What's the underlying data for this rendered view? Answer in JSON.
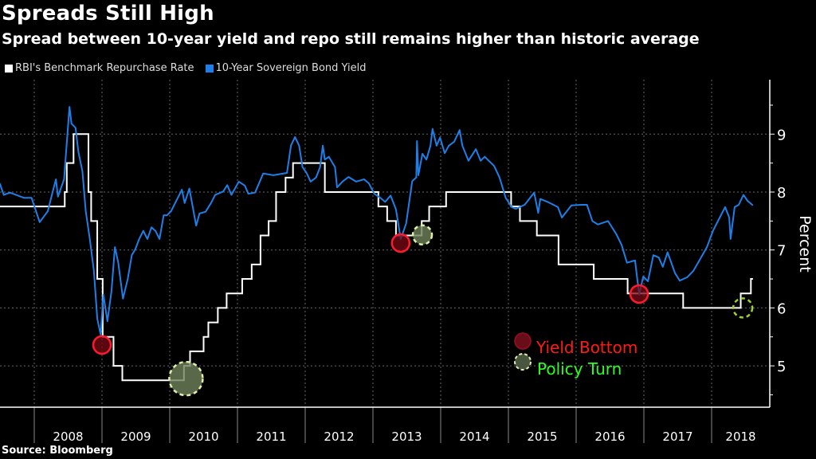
{
  "title": "Spreads Still High",
  "subtitle": "Spread between 10-year yield and repo still remains higher than historic average",
  "source": "Source: Bloomberg",
  "colors": {
    "repo": "#ffffff",
    "yield": "#1e7fe8",
    "yield_bottom": "#ff1a2e",
    "policy_turn": "#33ff22",
    "grid": "#555555"
  },
  "chart_data": {
    "type": "line",
    "title": "Spreads Still High",
    "xlabel": "",
    "ylabel": "Percent",
    "xlim": [
      2007.49,
      2018.95
    ],
    "ylim": [
      4.3,
      9.9
    ],
    "x_tick_labels": [
      "2008",
      "2009",
      "2010",
      "2011",
      "2012",
      "2013",
      "2014",
      "2015",
      "2016",
      "2017",
      "2018"
    ],
    "y_ticks": [
      5,
      6,
      7,
      8,
      9
    ],
    "y_tick_labels": [
      "5",
      "6",
      "7",
      "8",
      "9"
    ],
    "grid": true,
    "legend_placement": "top-left",
    "series": [
      {
        "name": "RBI's Benchmark Repurchase Rate",
        "color": "#ffffff",
        "step": true,
        "points": [
          [
            2007.49,
            7.75
          ],
          [
            2008.45,
            8.0
          ],
          [
            2008.48,
            8.5
          ],
          [
            2008.58,
            9.0
          ],
          [
            2008.8,
            8.0
          ],
          [
            2008.84,
            7.5
          ],
          [
            2008.93,
            6.5
          ],
          [
            2009.01,
            5.5
          ],
          [
            2009.17,
            5.0
          ],
          [
            2009.3,
            4.75
          ],
          [
            2010.21,
            5.0
          ],
          [
            2010.3,
            5.25
          ],
          [
            2010.5,
            5.5
          ],
          [
            2010.57,
            5.75
          ],
          [
            2010.71,
            6.0
          ],
          [
            2010.84,
            6.25
          ],
          [
            2011.07,
            6.5
          ],
          [
            2011.21,
            6.75
          ],
          [
            2011.34,
            7.25
          ],
          [
            2011.46,
            7.5
          ],
          [
            2011.57,
            8.0
          ],
          [
            2011.71,
            8.25
          ],
          [
            2011.82,
            8.5
          ],
          [
            2012.29,
            8.0
          ],
          [
            2013.08,
            7.75
          ],
          [
            2013.21,
            7.5
          ],
          [
            2013.34,
            7.25
          ],
          [
            2013.72,
            7.5
          ],
          [
            2013.83,
            7.75
          ],
          [
            2014.08,
            8.0
          ],
          [
            2015.04,
            7.75
          ],
          [
            2015.17,
            7.5
          ],
          [
            2015.42,
            7.25
          ],
          [
            2015.74,
            6.75
          ],
          [
            2016.26,
            6.5
          ],
          [
            2016.76,
            6.25
          ],
          [
            2017.58,
            6.0
          ],
          [
            2018.43,
            6.25
          ],
          [
            2018.58,
            6.5
          ],
          [
            2018.61,
            6.5
          ]
        ]
      },
      {
        "name": "10-Year Sovereign Bond Yield",
        "color": "#1e7fe8",
        "points": [
          [
            2007.49,
            8.15
          ],
          [
            2007.55,
            7.95
          ],
          [
            2007.64,
            7.99
          ],
          [
            2007.85,
            7.9
          ],
          [
            2007.96,
            7.9
          ],
          [
            2008.08,
            7.48
          ],
          [
            2008.2,
            7.67
          ],
          [
            2008.26,
            7.95
          ],
          [
            2008.32,
            8.22
          ],
          [
            2008.35,
            7.92
          ],
          [
            2008.44,
            8.22
          ],
          [
            2008.47,
            8.7
          ],
          [
            2008.52,
            9.47
          ],
          [
            2008.55,
            9.18
          ],
          [
            2008.61,
            9.11
          ],
          [
            2008.65,
            8.7
          ],
          [
            2008.71,
            8.36
          ],
          [
            2008.76,
            7.67
          ],
          [
            2008.82,
            7.19
          ],
          [
            2008.88,
            6.64
          ],
          [
            2008.93,
            5.81
          ],
          [
            2008.98,
            5.54
          ],
          [
            2009.02,
            6.23
          ],
          [
            2009.08,
            5.77
          ],
          [
            2009.14,
            6.29
          ],
          [
            2009.19,
            7.05
          ],
          [
            2009.24,
            6.78
          ],
          [
            2009.31,
            6.16
          ],
          [
            2009.38,
            6.5
          ],
          [
            2009.44,
            6.91
          ],
          [
            2009.49,
            7.01
          ],
          [
            2009.55,
            7.19
          ],
          [
            2009.61,
            7.33
          ],
          [
            2009.67,
            7.19
          ],
          [
            2009.73,
            7.39
          ],
          [
            2009.79,
            7.33
          ],
          [
            2009.85,
            7.19
          ],
          [
            2009.91,
            7.6
          ],
          [
            2009.96,
            7.6
          ],
          [
            2010.02,
            7.67
          ],
          [
            2010.08,
            7.81
          ],
          [
            2010.18,
            8.04
          ],
          [
            2010.22,
            7.81
          ],
          [
            2010.29,
            8.06
          ],
          [
            2010.39,
            7.42
          ],
          [
            2010.44,
            7.63
          ],
          [
            2010.53,
            7.66
          ],
          [
            2010.61,
            7.81
          ],
          [
            2010.67,
            7.95
          ],
          [
            2010.79,
            8.01
          ],
          [
            2010.85,
            8.12
          ],
          [
            2010.91,
            7.95
          ],
          [
            2011.02,
            8.18
          ],
          [
            2011.11,
            8.11
          ],
          [
            2011.16,
            7.97
          ],
          [
            2011.26,
            7.99
          ],
          [
            2011.38,
            8.32
          ],
          [
            2011.53,
            8.29
          ],
          [
            2011.73,
            8.33
          ],
          [
            2011.79,
            8.8
          ],
          [
            2011.85,
            8.95
          ],
          [
            2011.91,
            8.8
          ],
          [
            2011.96,
            8.43
          ],
          [
            2012.02,
            8.33
          ],
          [
            2012.08,
            8.18
          ],
          [
            2012.16,
            8.25
          ],
          [
            2012.22,
            8.43
          ],
          [
            2012.26,
            8.8
          ],
          [
            2012.29,
            8.56
          ],
          [
            2012.35,
            8.61
          ],
          [
            2012.44,
            8.43
          ],
          [
            2012.47,
            8.08
          ],
          [
            2012.55,
            8.18
          ],
          [
            2012.64,
            8.26
          ],
          [
            2012.75,
            8.18
          ],
          [
            2012.87,
            8.22
          ],
          [
            2012.94,
            8.15
          ],
          [
            2013.02,
            7.97
          ],
          [
            2013.11,
            7.9
          ],
          [
            2013.18,
            7.83
          ],
          [
            2013.26,
            7.94
          ],
          [
            2013.34,
            7.7
          ],
          [
            2013.41,
            7.19
          ],
          [
            2013.49,
            7.46
          ],
          [
            2013.58,
            8.19
          ],
          [
            2013.64,
            8.25
          ],
          [
            2013.65,
            8.88
          ],
          [
            2013.67,
            8.29
          ],
          [
            2013.73,
            8.66
          ],
          [
            2013.79,
            8.56
          ],
          [
            2013.85,
            8.8
          ],
          [
            2013.88,
            9.09
          ],
          [
            2013.94,
            8.8
          ],
          [
            2013.99,
            8.94
          ],
          [
            2014.06,
            8.67
          ],
          [
            2014.12,
            8.8
          ],
          [
            2014.2,
            8.87
          ],
          [
            2014.28,
            9.07
          ],
          [
            2014.32,
            8.8
          ],
          [
            2014.41,
            8.54
          ],
          [
            2014.52,
            8.74
          ],
          [
            2014.59,
            8.54
          ],
          [
            2014.65,
            8.61
          ],
          [
            2014.79,
            8.45
          ],
          [
            2014.87,
            8.25
          ],
          [
            2014.96,
            7.9
          ],
          [
            2015.05,
            7.74
          ],
          [
            2015.11,
            7.71
          ],
          [
            2015.24,
            7.78
          ],
          [
            2015.38,
            7.99
          ],
          [
            2015.44,
            7.64
          ],
          [
            2015.47,
            7.88
          ],
          [
            2015.58,
            7.83
          ],
          [
            2015.73,
            7.74
          ],
          [
            2015.79,
            7.56
          ],
          [
            2015.93,
            7.77
          ],
          [
            2016.08,
            7.78
          ],
          [
            2016.16,
            7.78
          ],
          [
            2016.24,
            7.5
          ],
          [
            2016.32,
            7.44
          ],
          [
            2016.47,
            7.5
          ],
          [
            2016.59,
            7.28
          ],
          [
            2016.67,
            7.09
          ],
          [
            2016.75,
            6.78
          ],
          [
            2016.87,
            6.82
          ],
          [
            2016.93,
            6.23
          ],
          [
            2016.99,
            6.54
          ],
          [
            2017.06,
            6.46
          ],
          [
            2017.14,
            6.91
          ],
          [
            2017.22,
            6.87
          ],
          [
            2017.28,
            6.71
          ],
          [
            2017.35,
            6.96
          ],
          [
            2017.46,
            6.6
          ],
          [
            2017.53,
            6.47
          ],
          [
            2017.64,
            6.53
          ],
          [
            2017.73,
            6.64
          ],
          [
            2017.82,
            6.82
          ],
          [
            2017.93,
            7.05
          ],
          [
            2018.02,
            7.33
          ],
          [
            2018.12,
            7.56
          ],
          [
            2018.2,
            7.74
          ],
          [
            2018.26,
            7.56
          ],
          [
            2018.28,
            7.19
          ],
          [
            2018.34,
            7.74
          ],
          [
            2018.4,
            7.78
          ],
          [
            2018.47,
            7.95
          ],
          [
            2018.53,
            7.85
          ],
          [
            2018.61,
            7.77
          ]
        ]
      }
    ],
    "annotations": {
      "yield_bottom": {
        "label": "Yield Bottom",
        "points": [
          [
            2009.0,
            5.36
          ],
          [
            2013.41,
            7.12
          ],
          [
            2016.93,
            6.24
          ]
        ]
      },
      "policy_turn": {
        "label": "Policy Turn",
        "points": [
          [
            2010.24,
            4.78,
            "large"
          ],
          [
            2013.73,
            7.26,
            "small"
          ],
          [
            2018.46,
            6.0,
            "open"
          ]
        ]
      }
    }
  }
}
